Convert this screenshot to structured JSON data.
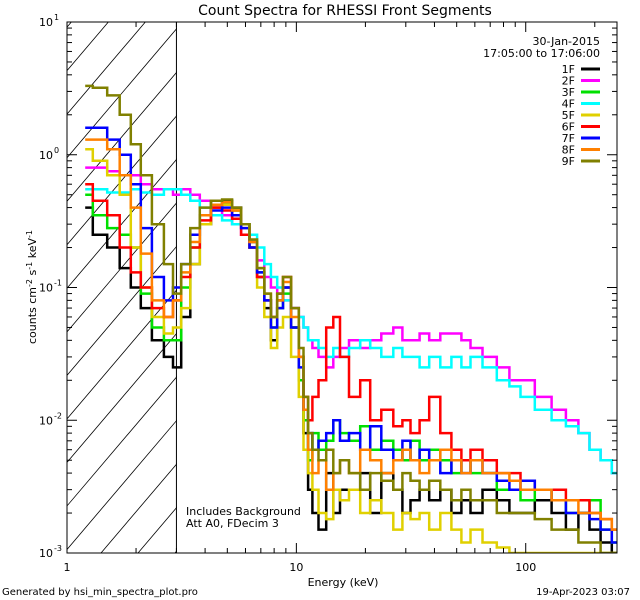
{
  "chart_data": {
    "type": "line",
    "title": "Count Spectra for RHESSI Front Segments",
    "xlabel": "Energy (keV)",
    "ylabel": "counts cm^-2 s^-1 keV^-1",
    "xscale": "log",
    "yscale": "log",
    "xlim": [
      1,
      250
    ],
    "ylim": [
      0.001,
      10
    ],
    "x_ticks": [
      {
        "value": 1,
        "label": "1"
      },
      {
        "value": 10,
        "label": "10"
      },
      {
        "value": 100,
        "label": "100"
      }
    ],
    "y_ticks": [
      {
        "value": 0.001,
        "base": "10",
        "exp": "-3"
      },
      {
        "value": 0.01,
        "base": "10",
        "exp": "-2"
      },
      {
        "value": 0.1,
        "base": "10",
        "exp": "-1"
      },
      {
        "value": 1,
        "base": "10",
        "exp": "0"
      },
      {
        "value": 10,
        "base": "10",
        "exp": "1"
      }
    ],
    "hatched_region": {
      "x_from": 1,
      "x_to": 3
    },
    "annotation_date": "30-Jan-2015",
    "annotation_time": "17:05:00 to 17:06:00",
    "annotation_background": "Includes Background",
    "annotation_att": "Att A0, FDecim 3",
    "series": [
      {
        "name": "1F",
        "color": "#000000",
        "x": [
          1.2,
          1.4,
          1.6,
          1.8,
          2.0,
          2.2,
          2.5,
          2.8,
          3.0,
          3.3,
          3.6,
          4.0,
          4.5,
          5.0,
          5.5,
          6.0,
          6.5,
          7.0,
          7.5,
          8.0,
          8.5,
          9.0,
          10.0,
          10.5,
          11.0,
          11.5,
          12.0,
          13.0,
          14.0,
          15.0,
          16.0,
          18.0,
          20.0,
          22.0,
          25.0,
          28.0,
          30.0,
          33.0,
          36.0,
          40.0,
          45.0,
          50.0,
          55.0,
          60.0,
          70.0,
          80.0,
          90.0,
          100.0,
          120.0,
          140.0,
          160.0,
          180.0,
          200.0,
          225.0,
          250.0
        ],
        "y": [
          0.4,
          0.25,
          0.2,
          0.14,
          0.1,
          0.07,
          0.04,
          0.03,
          0.025,
          0.06,
          0.15,
          0.3,
          0.4,
          0.45,
          0.4,
          0.3,
          0.22,
          0.12,
          0.07,
          0.04,
          0.08,
          0.1,
          0.05,
          0.02,
          0.008,
          0.003,
          0.002,
          0.0015,
          0.004,
          0.002,
          0.003,
          0.003,
          0.004,
          0.002,
          0.004,
          0.003,
          0.002,
          0.0025,
          0.003,
          0.0025,
          0.003,
          0.002,
          0.0025,
          0.002,
          0.003,
          0.0025,
          0.002,
          0.002,
          0.0025,
          0.002,
          0.0015,
          0.002,
          0.0015,
          0.0012,
          0.001
        ]
      },
      {
        "name": "2F",
        "color": "#ff00ff",
        "x": [
          1.2,
          1.4,
          1.6,
          1.8,
          2.0,
          2.2,
          2.5,
          2.8,
          3.0,
          3.3,
          3.6,
          4.0,
          4.5,
          5.0,
          5.5,
          6.0,
          6.5,
          7.0,
          7.5,
          8.0,
          8.5,
          9.0,
          10.0,
          10.5,
          11.0,
          11.5,
          12.0,
          13.0,
          14.0,
          15.0,
          16.0,
          18.0,
          20.0,
          22.0,
          25.0,
          28.0,
          30.0,
          33.0,
          36.0,
          40.0,
          45.0,
          50.0,
          55.0,
          60.0,
          70.0,
          80.0,
          90.0,
          100.0,
          120.0,
          140.0,
          160.0,
          180.0,
          200.0,
          225.0,
          250.0
        ],
        "y": [
          0.8,
          0.8,
          0.75,
          0.7,
          0.7,
          0.6,
          0.55,
          0.55,
          0.5,
          0.55,
          0.5,
          0.45,
          0.4,
          0.35,
          0.3,
          0.25,
          0.2,
          0.16,
          0.12,
          0.1,
          0.09,
          0.08,
          0.07,
          0.06,
          0.05,
          0.04,
          0.035,
          0.03,
          0.025,
          0.03,
          0.035,
          0.04,
          0.035,
          0.04,
          0.045,
          0.05,
          0.04,
          0.04,
          0.045,
          0.04,
          0.045,
          0.045,
          0.04,
          0.035,
          0.03,
          0.025,
          0.02,
          0.02,
          0.015,
          0.012,
          0.01,
          0.008,
          0.006,
          0.005,
          0.004
        ]
      },
      {
        "name": "3F",
        "color": "#00e000",
        "x": [
          1.2,
          1.4,
          1.6,
          1.8,
          2.0,
          2.2,
          2.5,
          2.8,
          3.0,
          3.3,
          3.6,
          4.0,
          4.5,
          5.0,
          5.5,
          6.0,
          6.5,
          7.0,
          7.5,
          8.0,
          8.5,
          9.0,
          10.0,
          10.5,
          11.0,
          11.5,
          12.0,
          13.0,
          14.0,
          15.0,
          16.0,
          18.0,
          20.0,
          22.0,
          25.0,
          28.0,
          30.0,
          33.0,
          36.0,
          40.0,
          45.0,
          50.0,
          55.0,
          60.0,
          70.0,
          80.0,
          90.0,
          100.0,
          120.0,
          140.0,
          160.0,
          180.0,
          200.0,
          225.0,
          250.0
        ],
        "y": [
          0.5,
          0.35,
          0.28,
          0.25,
          0.2,
          0.09,
          0.05,
          0.04,
          0.04,
          0.1,
          0.2,
          0.35,
          0.45,
          0.43,
          0.38,
          0.3,
          0.2,
          0.13,
          0.08,
          0.05,
          0.07,
          0.09,
          0.05,
          0.02,
          0.01,
          0.005,
          0.008,
          0.006,
          0.007,
          0.01,
          0.008,
          0.007,
          0.009,
          0.006,
          0.007,
          0.006,
          0.005,
          0.007,
          0.005,
          0.006,
          0.005,
          0.004,
          0.005,
          0.004,
          0.004,
          0.003,
          0.003,
          0.0025,
          0.003,
          0.0025,
          0.002,
          0.002,
          0.0025,
          0.0015,
          0.0012
        ]
      },
      {
        "name": "4F",
        "color": "#00ffff",
        "x": [
          1.2,
          1.4,
          1.6,
          1.8,
          2.0,
          2.2,
          2.5,
          2.8,
          3.0,
          3.3,
          3.6,
          4.0,
          4.5,
          5.0,
          5.5,
          6.0,
          6.5,
          7.0,
          7.5,
          8.0,
          8.5,
          9.0,
          10.0,
          10.5,
          11.0,
          11.5,
          12.0,
          13.0,
          14.0,
          15.0,
          16.0,
          18.0,
          20.0,
          22.0,
          25.0,
          28.0,
          30.0,
          33.0,
          36.0,
          40.0,
          45.0,
          50.0,
          55.0,
          60.0,
          70.0,
          80.0,
          90.0,
          100.0,
          120.0,
          140.0,
          160.0,
          180.0,
          200.0,
          225.0,
          250.0
        ],
        "y": [
          0.55,
          0.55,
          0.52,
          0.52,
          0.55,
          0.52,
          0.5,
          0.55,
          0.55,
          0.5,
          0.45,
          0.4,
          0.35,
          0.32,
          0.3,
          0.3,
          0.25,
          0.2,
          0.15,
          0.12,
          0.1,
          0.08,
          0.07,
          0.06,
          0.05,
          0.04,
          0.04,
          0.035,
          0.03,
          0.035,
          0.03,
          0.035,
          0.04,
          0.035,
          0.03,
          0.035,
          0.03,
          0.03,
          0.025,
          0.03,
          0.025,
          0.03,
          0.025,
          0.03,
          0.025,
          0.02,
          0.018,
          0.015,
          0.012,
          0.01,
          0.009,
          0.008,
          0.006,
          0.005,
          0.004
        ]
      },
      {
        "name": "5F",
        "color": "#e0d000",
        "x": [
          1.2,
          1.4,
          1.6,
          1.8,
          2.0,
          2.2,
          2.5,
          2.8,
          3.0,
          3.3,
          3.6,
          4.0,
          4.5,
          5.0,
          5.5,
          6.0,
          6.5,
          7.0,
          7.5,
          8.0,
          8.5,
          9.0,
          10.0,
          10.5,
          11.0,
          11.5,
          12.0,
          13.0,
          14.0,
          15.0,
          16.0,
          18.0,
          20.0,
          22.0,
          25.0,
          28.0,
          30.0,
          33.0,
          36.0,
          40.0,
          45.0,
          50.0,
          55.0,
          60.0,
          70.0,
          80.0,
          90.0,
          100.0,
          120.0,
          140.0,
          160.0,
          180.0,
          200.0,
          225.0,
          250.0
        ],
        "y": [
          1.1,
          0.9,
          0.7,
          0.5,
          0.2,
          0.1,
          0.06,
          0.045,
          0.05,
          0.07,
          0.15,
          0.3,
          0.4,
          0.42,
          0.38,
          0.28,
          0.2,
          0.1,
          0.06,
          0.035,
          0.05,
          0.06,
          0.03,
          0.015,
          0.006,
          0.004,
          0.003,
          0.002,
          0.0018,
          0.003,
          0.0025,
          0.003,
          0.002,
          0.0025,
          0.002,
          0.0015,
          0.002,
          0.0018,
          0.002,
          0.0015,
          0.002,
          0.0015,
          0.0012,
          0.0015,
          0.0012,
          0.0011,
          0.001,
          0.001,
          0.001,
          0.001,
          0.001,
          0.001,
          0.001,
          0.001,
          0.001
        ]
      },
      {
        "name": "6F",
        "color": "#ff0000",
        "x": [
          1.2,
          1.4,
          1.6,
          1.8,
          2.0,
          2.2,
          2.5,
          2.8,
          3.0,
          3.3,
          3.6,
          4.0,
          4.5,
          5.0,
          5.5,
          6.0,
          6.5,
          7.0,
          7.5,
          8.0,
          8.5,
          9.0,
          10.0,
          10.5,
          11.0,
          11.5,
          12.0,
          13.0,
          14.0,
          15.0,
          16.0,
          18.0,
          20.0,
          22.0,
          25.0,
          28.0,
          30.0,
          33.0,
          36.0,
          40.0,
          45.0,
          50.0,
          55.0,
          60.0,
          70.0,
          80.0,
          90.0,
          100.0,
          120.0,
          140.0,
          160.0,
          180.0,
          200.0,
          225.0,
          250.0
        ],
        "y": [
          0.6,
          0.45,
          0.35,
          0.2,
          0.13,
          0.1,
          0.07,
          0.06,
          0.08,
          0.12,
          0.2,
          0.32,
          0.4,
          0.38,
          0.33,
          0.25,
          0.2,
          0.12,
          0.08,
          0.06,
          0.09,
          0.12,
          0.07,
          0.03,
          0.015,
          0.01,
          0.015,
          0.02,
          0.05,
          0.06,
          0.03,
          0.015,
          0.02,
          0.01,
          0.012,
          0.009,
          0.01,
          0.008,
          0.01,
          0.015,
          0.008,
          0.006,
          0.005,
          0.006,
          0.005,
          0.004,
          0.004,
          0.0035,
          0.003,
          0.003,
          0.0025,
          0.0025,
          0.002,
          0.0018,
          0.0015
        ]
      },
      {
        "name": "7F",
        "color": "#0000ff",
        "x": [
          1.2,
          1.4,
          1.6,
          1.8,
          2.0,
          2.2,
          2.5,
          2.8,
          3.0,
          3.3,
          3.6,
          4.0,
          4.5,
          5.0,
          5.5,
          6.0,
          6.5,
          7.0,
          7.5,
          8.0,
          8.5,
          9.0,
          10.0,
          10.5,
          11.0,
          11.5,
          12.0,
          13.0,
          14.0,
          15.0,
          16.0,
          18.0,
          20.0,
          22.0,
          25.0,
          28.0,
          30.0,
          33.0,
          36.0,
          40.0,
          45.0,
          50.0,
          55.0,
          60.0,
          70.0,
          80.0,
          90.0,
          100.0,
          120.0,
          140.0,
          160.0,
          180.0,
          200.0,
          225.0,
          250.0
        ],
        "y": [
          1.6,
          1.6,
          1.3,
          1.0,
          0.6,
          0.28,
          0.12,
          0.08,
          0.1,
          0.15,
          0.25,
          0.35,
          0.38,
          0.4,
          0.35,
          0.28,
          0.2,
          0.13,
          0.08,
          0.05,
          0.07,
          0.1,
          0.05,
          0.025,
          0.012,
          0.008,
          0.006,
          0.007,
          0.008,
          0.01,
          0.007,
          0.008,
          0.006,
          0.009,
          0.006,
          0.005,
          0.007,
          0.005,
          0.006,
          0.005,
          0.004,
          0.005,
          0.004,
          0.005,
          0.004,
          0.0035,
          0.003,
          0.0035,
          0.003,
          0.0025,
          0.002,
          0.002,
          0.0018,
          0.0015,
          0.0012
        ]
      },
      {
        "name": "8F",
        "color": "#ff8000",
        "x": [
          1.2,
          1.4,
          1.6,
          1.8,
          2.0,
          2.2,
          2.5,
          2.8,
          3.0,
          3.3,
          3.6,
          4.0,
          4.5,
          5.0,
          5.5,
          6.0,
          6.5,
          7.0,
          7.5,
          8.0,
          8.5,
          9.0,
          10.0,
          10.5,
          11.0,
          11.5,
          12.0,
          13.0,
          14.0,
          15.0,
          16.0,
          18.0,
          20.0,
          22.0,
          25.0,
          28.0,
          30.0,
          33.0,
          36.0,
          40.0,
          45.0,
          50.0,
          55.0,
          60.0,
          70.0,
          80.0,
          90.0,
          100.0,
          120.0,
          140.0,
          160.0,
          180.0,
          200.0,
          225.0,
          250.0
        ],
        "y": [
          1.3,
          1.3,
          1.1,
          0.7,
          0.4,
          0.18,
          0.08,
          0.06,
          0.08,
          0.13,
          0.22,
          0.35,
          0.42,
          0.44,
          0.38,
          0.3,
          0.22,
          0.14,
          0.09,
          0.06,
          0.08,
          0.11,
          0.06,
          0.03,
          0.012,
          0.006,
          0.004,
          0.005,
          0.003,
          0.004,
          0.005,
          0.004,
          0.006,
          0.005,
          0.004,
          0.005,
          0.006,
          0.005,
          0.004,
          0.005,
          0.006,
          0.005,
          0.004,
          0.005,
          0.004,
          0.004,
          0.0035,
          0.003,
          0.003,
          0.0025,
          0.0025,
          0.002,
          0.002,
          0.0018,
          0.0015
        ]
      },
      {
        "name": "9F",
        "color": "#808000",
        "x": [
          1.2,
          1.4,
          1.6,
          1.8,
          2.0,
          2.2,
          2.5,
          2.8,
          3.0,
          3.3,
          3.6,
          4.0,
          4.5,
          5.0,
          5.5,
          6.0,
          6.5,
          7.0,
          7.5,
          8.0,
          8.5,
          9.0,
          10.0,
          10.5,
          11.0,
          11.5,
          12.0,
          13.0,
          14.0,
          15.0,
          16.0,
          18.0,
          20.0,
          22.0,
          25.0,
          28.0,
          30.0,
          33.0,
          36.0,
          40.0,
          45.0,
          50.0,
          55.0,
          60.0,
          70.0,
          80.0,
          90.0,
          100.0,
          120.0,
          140.0,
          160.0,
          180.0,
          200.0,
          225.0,
          250.0
        ],
        "y": [
          3.3,
          3.2,
          2.8,
          2.0,
          1.2,
          0.7,
          0.3,
          0.15,
          0.09,
          0.15,
          0.28,
          0.4,
          0.45,
          0.46,
          0.4,
          0.3,
          0.23,
          0.14,
          0.09,
          0.06,
          0.09,
          0.12,
          0.07,
          0.035,
          0.015,
          0.008,
          0.006,
          0.005,
          0.006,
          0.004,
          0.005,
          0.004,
          0.003,
          0.004,
          0.0035,
          0.003,
          0.004,
          0.0035,
          0.003,
          0.0035,
          0.003,
          0.0025,
          0.003,
          0.0025,
          0.0025,
          0.002,
          0.002,
          0.002,
          0.0018,
          0.0015,
          0.0015,
          0.0012,
          0.0012,
          0.001,
          0.001
        ]
      }
    ]
  },
  "footer": {
    "generated_by": "Generated by hsi_min_spectra_plot.pro",
    "timestamp": "19-Apr-2023 03:07"
  }
}
